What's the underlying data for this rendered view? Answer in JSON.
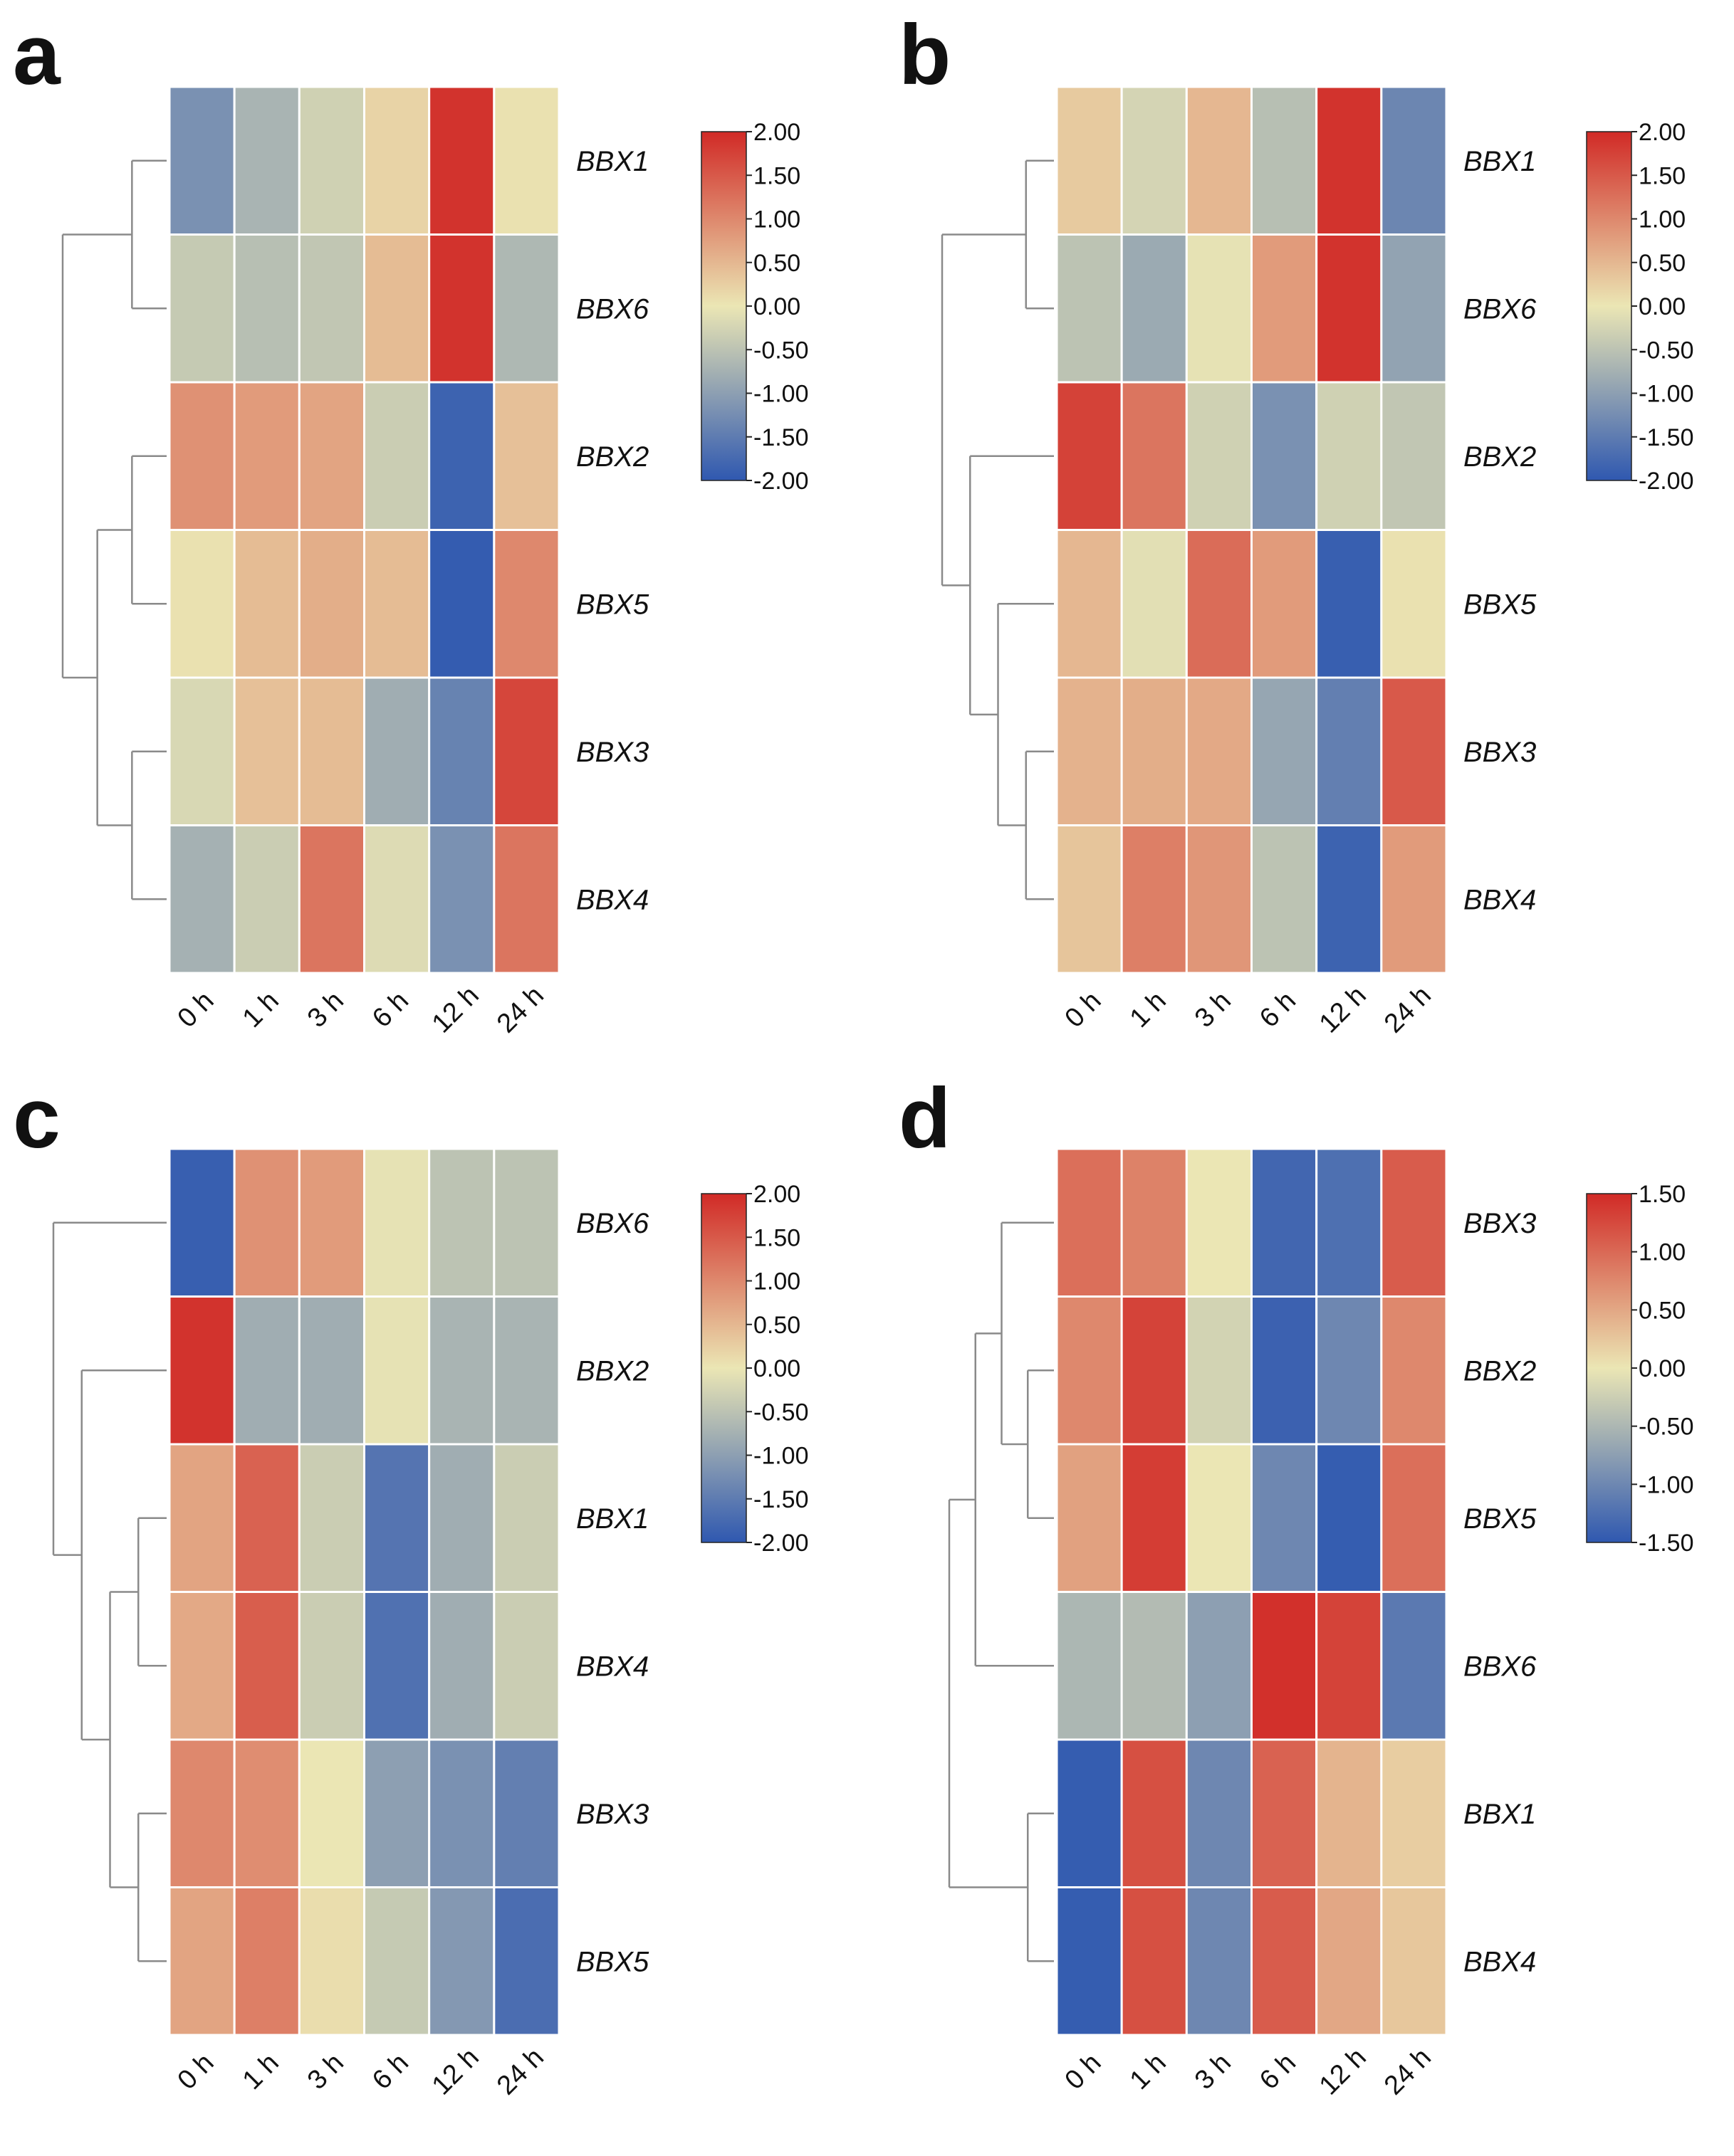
{
  "colors": {
    "low": "#2f58b0",
    "mid": "#ebe6b4",
    "high": "#d12a26"
  },
  "chart_data": [
    {
      "type": "heatmap",
      "panel_label": "a",
      "columns": [
        "0 h",
        "1 h",
        "3 h",
        "6 h",
        "12 h",
        "24 h"
      ],
      "rows": [
        "BBX1",
        "BBX6",
        "BBX2",
        "BBX5",
        "BBX3",
        "BBX4"
      ],
      "values": [
        [
          -1.2,
          -0.7,
          -0.3,
          0.2,
          1.9,
          0.05
        ],
        [
          -0.4,
          -0.55,
          -0.45,
          0.45,
          1.9,
          -0.65
        ],
        [
          0.9,
          0.8,
          0.7,
          -0.35,
          -1.85,
          0.4
        ],
        [
          0.05,
          0.45,
          0.6,
          0.45,
          -1.95,
          1.0
        ],
        [
          -0.2,
          0.4,
          0.45,
          -0.8,
          -1.4,
          1.7
        ],
        [
          -0.75,
          -0.35,
          1.2,
          -0.15,
          -1.2,
          1.2
        ]
      ],
      "colorbar": {
        "vmin": -2.0,
        "vmax": 2.0,
        "ticks": [
          "2.00",
          "1.50",
          "1.00",
          "0.50",
          "0.00",
          "-0.50",
          "-1.00",
          "-1.50",
          "-2.00"
        ]
      },
      "dendrogram": "((BBX1,BBX6),((BBX2,BBX5),(BBX3,BBX4)))"
    },
    {
      "type": "heatmap",
      "panel_label": "b",
      "columns": [
        "0 h",
        "1 h",
        "3 h",
        "6 h",
        "12 h",
        "24 h"
      ],
      "rows": [
        "BBX1",
        "BBX6",
        "BBX2",
        "BBX5",
        "BBX3",
        "BBX4"
      ],
      "values": [
        [
          0.3,
          -0.25,
          0.5,
          -0.55,
          1.9,
          -1.35
        ],
        [
          -0.5,
          -0.85,
          -0.05,
          0.8,
          1.9,
          -0.95
        ],
        [
          1.75,
          1.2,
          -0.3,
          -1.2,
          -0.3,
          -0.45
        ],
        [
          0.5,
          -0.1,
          1.3,
          0.8,
          -1.9,
          0.05
        ],
        [
          0.55,
          0.6,
          0.65,
          -0.9,
          -1.45,
          1.5
        ],
        [
          0.35,
          1.1,
          0.85,
          -0.5,
          -1.85,
          0.8
        ]
      ],
      "colorbar": {
        "vmin": -2.0,
        "vmax": 2.0,
        "ticks": [
          "2.00",
          "1.50",
          "1.00",
          "0.50",
          "0.00",
          "-0.50",
          "-1.00",
          "-1.50",
          "-2.00"
        ]
      },
      "dendrogram": "((BBX1,BBX6),(BBX2,(BBX5,(BBX3,BBX4))))"
    },
    {
      "type": "heatmap",
      "panel_label": "c",
      "columns": [
        "0 h",
        "1 h",
        "3 h",
        "6 h",
        "12 h",
        "24 h"
      ],
      "rows": [
        "BBX6",
        "BBX2",
        "BBX1",
        "BBX4",
        "BBX3",
        "BBX5"
      ],
      "values": [
        [
          -1.9,
          0.9,
          0.8,
          -0.05,
          -0.5,
          -0.5
        ],
        [
          1.9,
          -0.8,
          -0.8,
          -0.05,
          -0.7,
          -0.7
        ],
        [
          0.7,
          1.4,
          -0.35,
          -1.6,
          -0.8,
          -0.35
        ],
        [
          0.65,
          1.45,
          -0.35,
          -1.65,
          -0.8,
          -0.35
        ],
        [
          1.0,
          0.95,
          0.0,
          -1.0,
          -1.2,
          -1.45
        ],
        [
          0.7,
          1.1,
          0.1,
          -0.4,
          -1.1,
          -1.7
        ]
      ],
      "colorbar": {
        "vmin": -2.0,
        "vmax": 2.0,
        "ticks": [
          "2.00",
          "1.50",
          "1.00",
          "0.50",
          "0.00",
          "-0.50",
          "-1.00",
          "-1.50",
          "-2.00"
        ]
      },
      "dendrogram": "(BBX6,(BBX2,((BBX1,BBX4),(BBX3,BBX5))))"
    },
    {
      "type": "heatmap",
      "panel_label": "d",
      "columns": [
        "0 h",
        "1 h",
        "3 h",
        "6 h",
        "12 h",
        "24 h"
      ],
      "rows": [
        "BBX3",
        "BBX2",
        "BBX5",
        "BBX6",
        "BBX1",
        "BBX4"
      ],
      "values": [
        [
          0.95,
          0.8,
          0.0,
          -1.35,
          -1.25,
          1.1
        ],
        [
          0.75,
          1.3,
          -0.2,
          -1.4,
          -1.0,
          0.75
        ],
        [
          0.55,
          1.35,
          0.0,
          -1.0,
          -1.45,
          0.95
        ],
        [
          -0.5,
          -0.45,
          -0.75,
          1.45,
          1.3,
          -1.15
        ],
        [
          -1.45,
          1.2,
          -1.0,
          1.05,
          0.4,
          0.2
        ],
        [
          -1.45,
          1.2,
          -1.0,
          1.1,
          0.5,
          0.25
        ]
      ],
      "colorbar": {
        "vmin": -1.5,
        "vmax": 1.5,
        "ticks": [
          "1.50",
          "1.00",
          "0.50",
          "0.00",
          "-0.50",
          "-1.00",
          "-1.50"
        ]
      },
      "dendrogram": "(((BBX3,(BBX2,BBX5)),BBX6),(BBX1,BBX4))"
    }
  ]
}
